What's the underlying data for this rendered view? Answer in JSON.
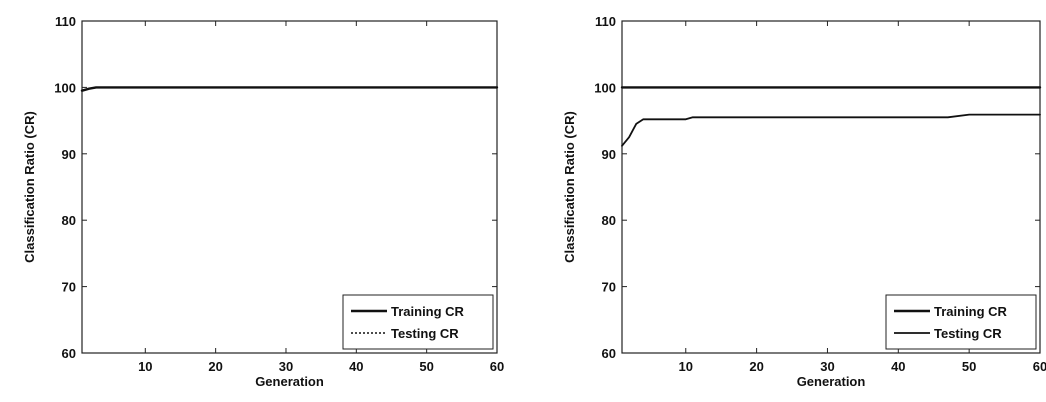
{
  "chart_data": [
    {
      "type": "line",
      "xlabel": "Generation",
      "ylabel": "Classification Ratio (CR)",
      "xlim": [
        1,
        60
      ],
      "ylim": [
        60,
        110
      ],
      "xticks": [
        10,
        20,
        30,
        40,
        50,
        60
      ],
      "yticks": [
        60,
        70,
        80,
        90,
        100,
        110
      ],
      "legend_position": "bottom-right",
      "x": [
        1,
        2,
        3,
        4,
        5,
        10,
        20,
        30,
        40,
        50,
        60
      ],
      "series": [
        {
          "name": "Training CR",
          "style": "solid",
          "values": [
            99.5,
            99.8,
            100,
            100,
            100,
            100,
            100,
            100,
            100,
            100,
            100
          ]
        },
        {
          "name": "Testing CR",
          "style": "dotted",
          "values": [
            99.5,
            99.8,
            100,
            100,
            100,
            100,
            100,
            100,
            100,
            100,
            100
          ]
        }
      ]
    },
    {
      "type": "line",
      "xlabel": "Generation",
      "ylabel": "Classification Ratio (CR)",
      "xlim": [
        1,
        60
      ],
      "ylim": [
        60,
        110
      ],
      "xticks": [
        10,
        20,
        30,
        40,
        50,
        60
      ],
      "yticks": [
        60,
        70,
        80,
        90,
        100,
        110
      ],
      "legend_position": "bottom-right",
      "x": [
        1,
        2,
        3,
        4,
        5,
        10,
        11,
        20,
        30,
        40,
        47,
        50,
        60
      ],
      "series": [
        {
          "name": "Training CR",
          "style": "solid",
          "values": [
            100,
            100,
            100,
            100,
            100,
            100,
            100,
            100,
            100,
            100,
            100,
            100,
            100
          ]
        },
        {
          "name": "Testing CR",
          "style": "solid-thin",
          "values": [
            91.2,
            92.5,
            94.5,
            95.2,
            95.2,
            95.2,
            95.5,
            95.5,
            95.5,
            95.5,
            95.5,
            95.9,
            95.9
          ]
        }
      ]
    }
  ]
}
